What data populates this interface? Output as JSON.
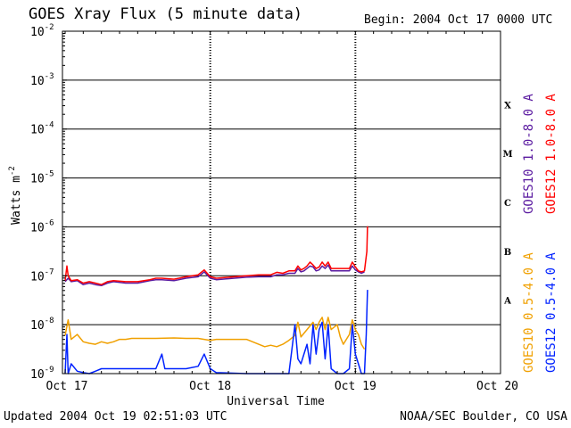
{
  "header": {
    "title": "GOES Xray Flux (5 minute data)",
    "begin": "Begin:  2004 Oct 17 0000 UTC"
  },
  "footer": {
    "updated": "Updated 2004 Oct 19 02:51:03 UTC",
    "credit": "NOAA/SEC Boulder, CO USA"
  },
  "chart_data": {
    "type": "line",
    "title": "GOES Xray Flux (5 minute data)",
    "xlabel": "Universal Time",
    "ylabel": "Watts m",
    "ylabel_sup": "-2",
    "y_scale": "log",
    "ylim": [
      1e-09,
      0.01
    ],
    "xlim": [
      0,
      72
    ],
    "x_unit": "hours since 2004 Oct 17 0000 UTC",
    "x_ticks": [
      {
        "x": 0,
        "label": "Oct 17"
      },
      {
        "x": 24,
        "label": "Oct 18"
      },
      {
        "x": 48,
        "label": "Oct 19"
      },
      {
        "x": 72,
        "label": "Oct 20"
      }
    ],
    "y_ticks": [
      {
        "base": "10",
        "exp": "-9",
        "v": -9
      },
      {
        "base": "10",
        "exp": "-8",
        "v": -8
      },
      {
        "base": "10",
        "exp": "-7",
        "v": -7
      },
      {
        "base": "10",
        "exp": "-6",
        "v": -6
      },
      {
        "base": "10",
        "exp": "-5",
        "v": -5
      },
      {
        "base": "10",
        "exp": "-4",
        "v": -4
      },
      {
        "base": "10",
        "exp": "-3",
        "v": -3
      },
      {
        "base": "10",
        "exp": "-2",
        "v": -2
      }
    ],
    "flare_classes": [
      {
        "label": "A",
        "v": -7.5
      },
      {
        "label": "B",
        "v": -6.5
      },
      {
        "label": "C",
        "v": -5.5
      },
      {
        "label": "M",
        "v": -4.5
      },
      {
        "label": "X",
        "v": -3.5
      }
    ],
    "grid_levels": [
      -8,
      -7,
      -6,
      -5,
      -4,
      -3
    ],
    "series": [
      {
        "name": "GOES10 0.5-4.0 A",
        "color": "#f0a000",
        "points": [
          [
            0,
            -8.22
          ],
          [
            0.5,
            -7.9
          ],
          [
            1,
            -8.3
          ],
          [
            2,
            -8.2
          ],
          [
            3,
            -8.35
          ],
          [
            4,
            -8.38
          ],
          [
            5,
            -8.4
          ],
          [
            6,
            -8.35
          ],
          [
            7,
            -8.38
          ],
          [
            8,
            -8.35
          ],
          [
            9,
            -8.3
          ],
          [
            10,
            -8.3
          ],
          [
            11,
            -8.28
          ],
          [
            12,
            -8.28
          ],
          [
            15,
            -8.28
          ],
          [
            18,
            -8.27
          ],
          [
            20,
            -8.28
          ],
          [
            22,
            -8.28
          ],
          [
            23,
            -8.3
          ],
          [
            24,
            -8.32
          ],
          [
            25,
            -8.3
          ],
          [
            28,
            -8.3
          ],
          [
            30,
            -8.3
          ],
          [
            31,
            -8.35
          ],
          [
            32,
            -8.4
          ],
          [
            33,
            -8.45
          ],
          [
            34,
            -8.42
          ],
          [
            35,
            -8.45
          ],
          [
            36,
            -8.4
          ],
          [
            37,
            -8.32
          ],
          [
            38,
            -8.22
          ],
          [
            38.5,
            -7.95
          ],
          [
            39,
            -8.25
          ],
          [
            40,
            -8.1
          ],
          [
            41,
            -7.95
          ],
          [
            41.5,
            -8.1
          ],
          [
            42,
            -7.95
          ],
          [
            42.5,
            -7.85
          ],
          [
            43,
            -8.1
          ],
          [
            43.5,
            -7.85
          ],
          [
            44,
            -8.1
          ],
          [
            45,
            -8.0
          ],
          [
            45.5,
            -8.25
          ],
          [
            46,
            -8.4
          ],
          [
            47,
            -8.2
          ],
          [
            47.5,
            -7.9
          ],
          [
            48,
            -8.1
          ],
          [
            48.5,
            -8.2
          ],
          [
            49,
            -8.4
          ],
          [
            49.5,
            -8.5
          ]
        ]
      },
      {
        "name": "GOES12 0.5-4.0 A",
        "color": "#0022ff",
        "points": [
          [
            0,
            -9.0
          ],
          [
            0.3,
            -8.2
          ],
          [
            0.5,
            -9.0
          ],
          [
            1,
            -8.8
          ],
          [
            2,
            -8.95
          ],
          [
            3,
            -8.98
          ],
          [
            4,
            -9.0
          ],
          [
            5,
            -8.95
          ],
          [
            6,
            -8.9
          ],
          [
            8,
            -8.9
          ],
          [
            12,
            -8.9
          ],
          [
            15,
            -8.9
          ],
          [
            16,
            -8.6
          ],
          [
            16.5,
            -8.9
          ],
          [
            20,
            -8.9
          ],
          [
            22,
            -8.85
          ],
          [
            23,
            -8.6
          ],
          [
            24,
            -8.9
          ],
          [
            25,
            -8.98
          ],
          [
            30,
            -9.0
          ],
          [
            35,
            -9.0
          ],
          [
            37,
            -9.0
          ],
          [
            37.5,
            -8.5
          ],
          [
            38,
            -8.0
          ],
          [
            38.5,
            -8.7
          ],
          [
            39,
            -8.8
          ],
          [
            40,
            -8.4
          ],
          [
            40.5,
            -8.8
          ],
          [
            41,
            -8.0
          ],
          [
            41.5,
            -8.6
          ],
          [
            42,
            -8.1
          ],
          [
            42.5,
            -7.95
          ],
          [
            43,
            -8.7
          ],
          [
            43.5,
            -8.0
          ],
          [
            44,
            -8.9
          ],
          [
            45,
            -9.0
          ],
          [
            46,
            -9.0
          ],
          [
            47,
            -8.9
          ],
          [
            47.5,
            -8.0
          ],
          [
            48,
            -8.6
          ],
          [
            48.5,
            -8.8
          ],
          [
            49,
            -9.0
          ],
          [
            49.5,
            -9.0
          ],
          [
            49.8,
            -8.2
          ],
          [
            50,
            -7.3
          ],
          [
            50.1,
            -7.3
          ]
        ]
      },
      {
        "name": "GOES10 1.0-8.0 A",
        "color": "#5a1aa0",
        "points": [
          [
            0,
            -7.12
          ],
          [
            0.5,
            -7.05
          ],
          [
            1,
            -7.12
          ],
          [
            2,
            -7.1
          ],
          [
            3,
            -7.18
          ],
          [
            4,
            -7.15
          ],
          [
            5,
            -7.18
          ],
          [
            6,
            -7.2
          ],
          [
            7,
            -7.15
          ],
          [
            8,
            -7.12
          ],
          [
            10,
            -7.15
          ],
          [
            12,
            -7.15
          ],
          [
            14,
            -7.1
          ],
          [
            15,
            -7.08
          ],
          [
            16,
            -7.08
          ],
          [
            18,
            -7.1
          ],
          [
            20,
            -7.05
          ],
          [
            22,
            -7.02
          ],
          [
            23,
            -6.92
          ],
          [
            24,
            -7.05
          ],
          [
            25,
            -7.08
          ],
          [
            28,
            -7.05
          ],
          [
            30,
            -7.03
          ],
          [
            32,
            -7.02
          ],
          [
            34,
            -7.02
          ],
          [
            35,
            -6.98
          ],
          [
            36,
            -6.98
          ],
          [
            37,
            -6.95
          ],
          [
            38,
            -6.95
          ],
          [
            38.5,
            -6.85
          ],
          [
            39,
            -6.92
          ],
          [
            39.5,
            -6.9
          ],
          [
            40,
            -6.85
          ],
          [
            40.5,
            -6.8
          ],
          [
            41,
            -6.82
          ],
          [
            41.5,
            -6.9
          ],
          [
            42,
            -6.88
          ],
          [
            42.5,
            -6.8
          ],
          [
            43,
            -6.85
          ],
          [
            43.5,
            -6.78
          ],
          [
            44,
            -6.9
          ],
          [
            45,
            -6.9
          ],
          [
            46,
            -6.9
          ],
          [
            47,
            -6.9
          ],
          [
            47.5,
            -6.8
          ],
          [
            48,
            -6.88
          ],
          [
            48.5,
            -6.92
          ],
          [
            49,
            -6.95
          ],
          [
            49.5,
            -6.92
          ]
        ]
      },
      {
        "name": "GOES12 1.0-8.0 A",
        "color": "#ff0000",
        "points": [
          [
            0,
            -7.1
          ],
          [
            0.3,
            -6.8
          ],
          [
            0.5,
            -7.0
          ],
          [
            1,
            -7.1
          ],
          [
            2,
            -7.08
          ],
          [
            3,
            -7.15
          ],
          [
            4,
            -7.12
          ],
          [
            5,
            -7.15
          ],
          [
            6,
            -7.18
          ],
          [
            7,
            -7.12
          ],
          [
            8,
            -7.1
          ],
          [
            10,
            -7.12
          ],
          [
            12,
            -7.12
          ],
          [
            14,
            -7.08
          ],
          [
            15,
            -7.05
          ],
          [
            16,
            -7.05
          ],
          [
            18,
            -7.07
          ],
          [
            20,
            -7.02
          ],
          [
            22,
            -6.98
          ],
          [
            23,
            -6.88
          ],
          [
            24,
            -7.02
          ],
          [
            25,
            -7.05
          ],
          [
            28,
            -7.02
          ],
          [
            30,
            -7.0
          ],
          [
            32,
            -6.98
          ],
          [
            34,
            -6.98
          ],
          [
            35,
            -6.93
          ],
          [
            36,
            -6.95
          ],
          [
            37,
            -6.9
          ],
          [
            38,
            -6.9
          ],
          [
            38.5,
            -6.8
          ],
          [
            39,
            -6.88
          ],
          [
            39.5,
            -6.85
          ],
          [
            40,
            -6.8
          ],
          [
            40.5,
            -6.72
          ],
          [
            41,
            -6.78
          ],
          [
            41.5,
            -6.85
          ],
          [
            42,
            -6.82
          ],
          [
            42.5,
            -6.72
          ],
          [
            43,
            -6.8
          ],
          [
            43.5,
            -6.72
          ],
          [
            44,
            -6.85
          ],
          [
            45,
            -6.85
          ],
          [
            46,
            -6.85
          ],
          [
            47,
            -6.85
          ],
          [
            47.5,
            -6.72
          ],
          [
            48,
            -6.82
          ],
          [
            48.5,
            -6.9
          ],
          [
            49,
            -6.92
          ],
          [
            49.5,
            -6.9
          ],
          [
            49.9,
            -6.5
          ],
          [
            50,
            -6.0
          ],
          [
            50.1,
            -6.0
          ]
        ]
      }
    ]
  }
}
